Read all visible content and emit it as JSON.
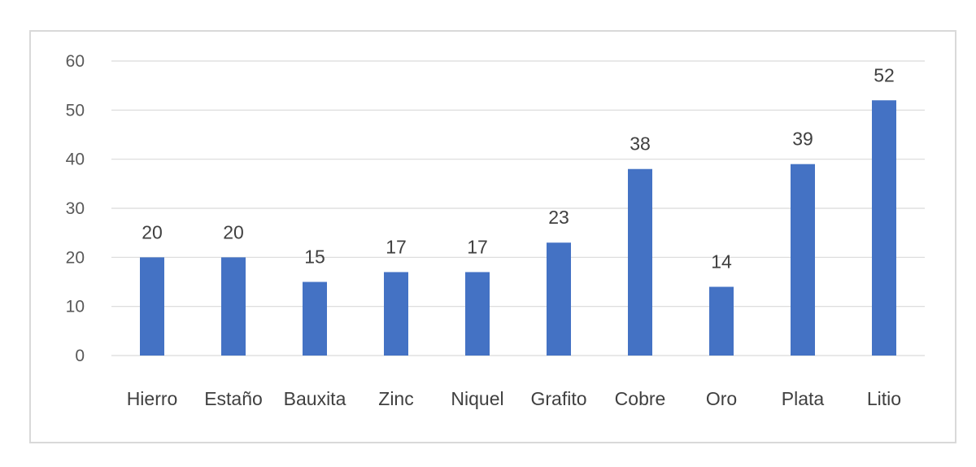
{
  "chart_data": {
    "type": "bar",
    "title": "",
    "xlabel": "",
    "ylabel": "",
    "categories": [
      "Hierro",
      "Estaño",
      "Bauxita",
      "Zinc",
      "Niquel",
      "Grafito",
      "Cobre",
      "Oro",
      "Plata",
      "Litio"
    ],
    "values": [
      20,
      20,
      15,
      17,
      17,
      23,
      38,
      14,
      39,
      52
    ],
    "ylim": [
      0,
      60
    ],
    "yticks": [
      0,
      10,
      20,
      30,
      40,
      50,
      60
    ],
    "grid": true,
    "legend": "none",
    "data_labels": true,
    "bar_color": "#4472c4"
  }
}
